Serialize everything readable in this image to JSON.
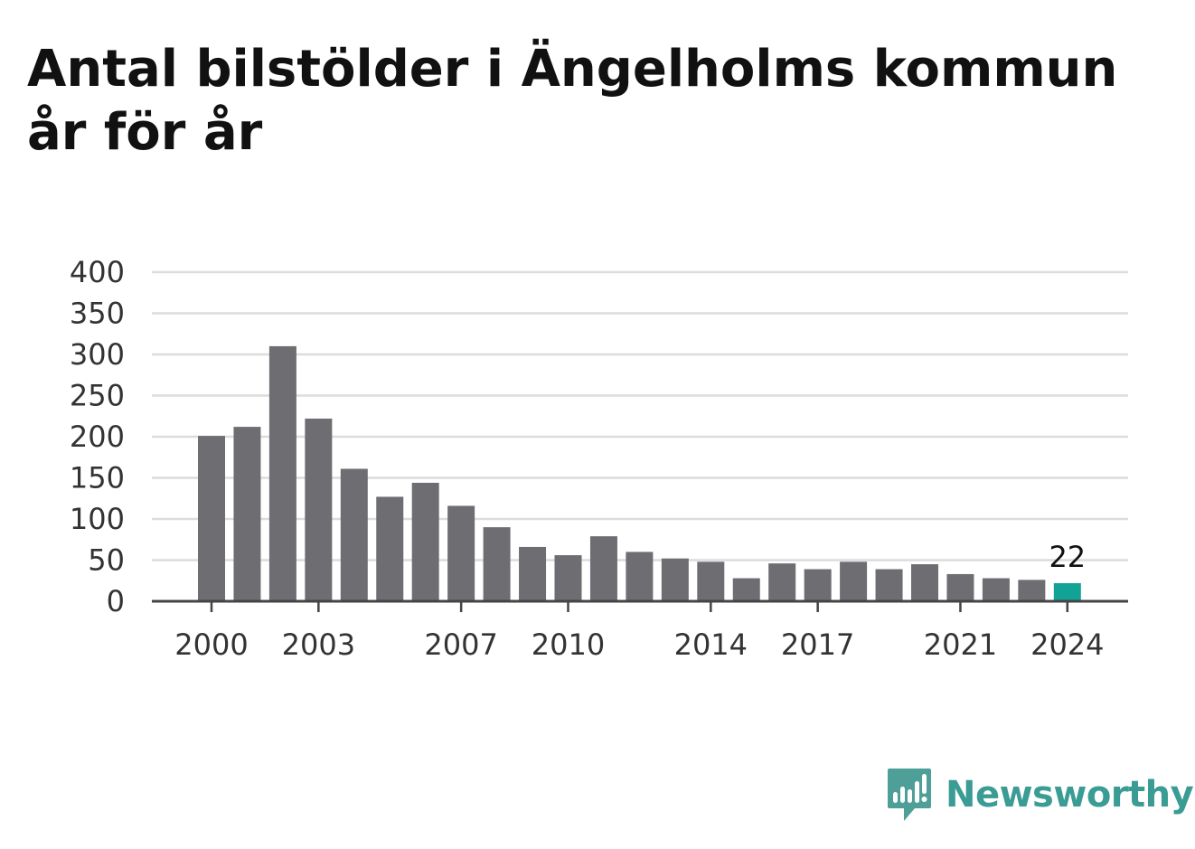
{
  "title": "Antal bilstölder i Ängelholms kommun år för år",
  "brand": {
    "name": "Newsworthy",
    "color": "#3a9c94"
  },
  "colors": {
    "bar": "#6e6d72",
    "highlight": "#13a296",
    "grid": "#dcdcdc",
    "axis": "#444444"
  },
  "chart_data": {
    "type": "bar",
    "title": "Antal bilstölder i Ängelholms kommun år för år",
    "xlabel": "",
    "ylabel": "",
    "ylim": [
      0,
      400
    ],
    "yticks": [
      0,
      50,
      100,
      150,
      200,
      250,
      300,
      350,
      400
    ],
    "xtick_labels": [
      "2000",
      "2003",
      "2007",
      "2010",
      "2014",
      "2017",
      "2021",
      "2024"
    ],
    "categories": [
      "2000",
      "2001",
      "2002",
      "2003",
      "2004",
      "2005",
      "2006",
      "2007",
      "2008",
      "2009",
      "2010",
      "2011",
      "2012",
      "2013",
      "2014",
      "2015",
      "2016",
      "2017",
      "2018",
      "2019",
      "2020",
      "2021",
      "2022",
      "2023",
      "2024"
    ],
    "values": [
      201,
      212,
      310,
      222,
      161,
      127,
      144,
      116,
      90,
      66,
      56,
      79,
      60,
      52,
      48,
      28,
      46,
      39,
      48,
      39,
      45,
      33,
      28,
      26,
      22
    ],
    "highlight": {
      "category": "2024",
      "label": "22"
    },
    "grid": true,
    "legend": "none"
  }
}
